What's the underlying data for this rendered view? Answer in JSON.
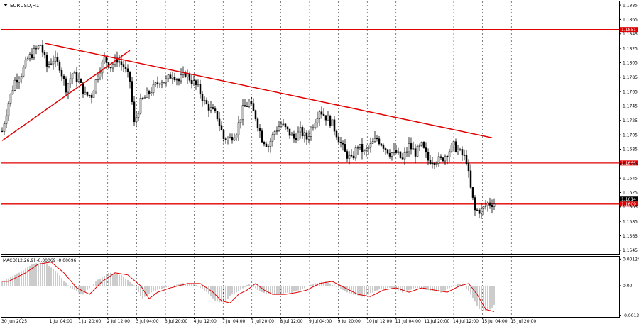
{
  "chart_data": [
    {
      "type": "candlestick",
      "symbol_label": "EURUSD,H1",
      "ylim": [
        1.154,
        1.189
      ],
      "y_ticks": [
        "1.1885",
        "1.1865",
        "1.1845",
        "1.1825",
        "1.1805",
        "1.1785",
        "1.1765",
        "1.1745",
        "1.1725",
        "1.1705",
        "1.1685",
        "1.1665",
        "1.1645",
        "1.1625",
        "1.1605",
        "1.1585",
        "1.1565",
        "1.1545"
      ],
      "x_labels": [
        "30 Jun 2025",
        "1 Jul 04:00",
        "1 Jul 20:00",
        "2 Jul 12:00",
        "3 Jul 04:00",
        "3 Jul 20:00",
        "4 Jul 12:00",
        "7 Jul 04:00",
        "7 Jul 20:00",
        "8 Jul 12:00",
        "9 Jul 04:00",
        "9 Jul 20:00",
        "10 Jul 12:00",
        "11 Jul 04:00",
        "11 Jul 20:00",
        "14 Jul 12:00",
        "15 Jul 04:00",
        "15 Jul 20:00"
      ],
      "horizontal_levels": [
        {
          "value": 1.1851,
          "label": "1.1851"
        },
        {
          "value": 1.1666,
          "label": "1.1666"
        },
        {
          "value": 1.1609,
          "label": "1.1609"
        }
      ],
      "current_price": {
        "value": 1.1614,
        "label": "1.1614"
      },
      "trendlines": [
        {
          "from": [
            0,
            1.1697
          ],
          "to": [
            60,
            1.1822
          ]
        },
        {
          "from": [
            20,
            1.1832
          ],
          "to": [
            230,
            1.1701
          ]
        }
      ],
      "series_anchors": [
        [
          0,
          1.171
        ],
        [
          3,
          1.175
        ],
        [
          6,
          1.178
        ],
        [
          9,
          1.179
        ],
        [
          12,
          1.181
        ],
        [
          15,
          1.182
        ],
        [
          18,
          1.183
        ],
        [
          21,
          1.18
        ],
        [
          24,
          1.181
        ],
        [
          27,
          1.18
        ],
        [
          30,
          1.177
        ],
        [
          33,
          1.179
        ],
        [
          36,
          1.178
        ],
        [
          39,
          1.176
        ],
        [
          42,
          1.176
        ],
        [
          45,
          1.179
        ],
        [
          48,
          1.181
        ],
        [
          51,
          1.18
        ],
        [
          54,
          1.181
        ],
        [
          57,
          1.18
        ],
        [
          60,
          1.178
        ],
        [
          62,
          1.172
        ],
        [
          65,
          1.175
        ],
        [
          68,
          1.176
        ],
        [
          71,
          1.177
        ],
        [
          74,
          1.178
        ],
        [
          77,
          1.178
        ],
        [
          80,
          1.179
        ],
        [
          83,
          1.178
        ],
        [
          86,
          1.179
        ],
        [
          89,
          1.178
        ],
        [
          92,
          1.177
        ],
        [
          95,
          1.175
        ],
        [
          98,
          1.174
        ],
        [
          101,
          1.173
        ],
        [
          104,
          1.17
        ],
        [
          107,
          1.17
        ],
        [
          110,
          1.171
        ],
        [
          113,
          1.174
        ],
        [
          116,
          1.175
        ],
        [
          119,
          1.173
        ],
        [
          122,
          1.17
        ],
        [
          125,
          1.169
        ],
        [
          128,
          1.171
        ],
        [
          131,
          1.172
        ],
        [
          134,
          1.171
        ],
        [
          137,
          1.17
        ],
        [
          140,
          1.171
        ],
        [
          143,
          1.17
        ],
        [
          146,
          1.172
        ],
        [
          149,
          1.174
        ],
        [
          152,
          1.173
        ],
        [
          155,
          1.172
        ],
        [
          158,
          1.17
        ],
        [
          161,
          1.168
        ],
        [
          164,
          1.167
        ],
        [
          167,
          1.169
        ],
        [
          170,
          1.168
        ],
        [
          173,
          1.169
        ],
        [
          176,
          1.17
        ],
        [
          179,
          1.169
        ],
        [
          182,
          1.168
        ],
        [
          185,
          1.168
        ],
        [
          188,
          1.167
        ],
        [
          191,
          1.169
        ],
        [
          194,
          1.168
        ],
        [
          197,
          1.169
        ],
        [
          200,
          1.167
        ],
        [
          203,
          1.167
        ],
        [
          206,
          1.167
        ],
        [
          209,
          1.168
        ],
        [
          212,
          1.169
        ],
        [
          215,
          1.168
        ],
        [
          218,
          1.167
        ],
        [
          220,
          1.163
        ],
        [
          222,
          1.16
        ],
        [
          225,
          1.16
        ],
        [
          228,
          1.161
        ],
        [
          230,
          1.161
        ]
      ]
    },
    {
      "type": "histogram",
      "indicator_label": "MACD(12,26,9) -0.00069 -0.00096",
      "ylim": [
        -0.00145,
        0.00135
      ],
      "y_ticks": [
        "0.00124",
        "0.00",
        "-0.00137"
      ],
      "hist_anchors": [
        [
          0,
          0.0002
        ],
        [
          8,
          0.0006
        ],
        [
          14,
          0.001
        ],
        [
          20,
          0.0011
        ],
        [
          26,
          0.0006
        ],
        [
          32,
          -0.0001
        ],
        [
          38,
          -0.0004
        ],
        [
          44,
          0.0002
        ],
        [
          50,
          0.0006
        ],
        [
          56,
          0.0005
        ],
        [
          62,
          0.0
        ],
        [
          66,
          -0.0006
        ],
        [
          70,
          -0.0003
        ],
        [
          76,
          -0.0001
        ],
        [
          84,
          0.0001
        ],
        [
          90,
          0.0001
        ],
        [
          96,
          -0.0003
        ],
        [
          100,
          -0.0007
        ],
        [
          104,
          -0.0008
        ],
        [
          108,
          -0.0004
        ],
        [
          112,
          -0.0002
        ],
        [
          116,
          0.0001
        ],
        [
          120,
          -0.0002
        ],
        [
          124,
          -0.0004
        ],
        [
          130,
          -0.0004
        ],
        [
          136,
          -0.0003
        ],
        [
          140,
          -0.0002
        ],
        [
          146,
          0.0001
        ],
        [
          152,
          0.0002
        ],
        [
          158,
          -0.0001
        ],
        [
          164,
          -0.0004
        ],
        [
          170,
          -0.0005
        ],
        [
          176,
          -0.0002
        ],
        [
          182,
          -0.0001
        ],
        [
          188,
          -0.0003
        ],
        [
          194,
          -0.0001
        ],
        [
          200,
          -0.0002
        ],
        [
          206,
          -0.0003
        ],
        [
          212,
          0.0
        ],
        [
          216,
          0.0001
        ],
        [
          220,
          -0.0004
        ],
        [
          224,
          -0.0011
        ],
        [
          228,
          -0.0012
        ],
        [
          231,
          -0.0009
        ]
      ]
    }
  ]
}
